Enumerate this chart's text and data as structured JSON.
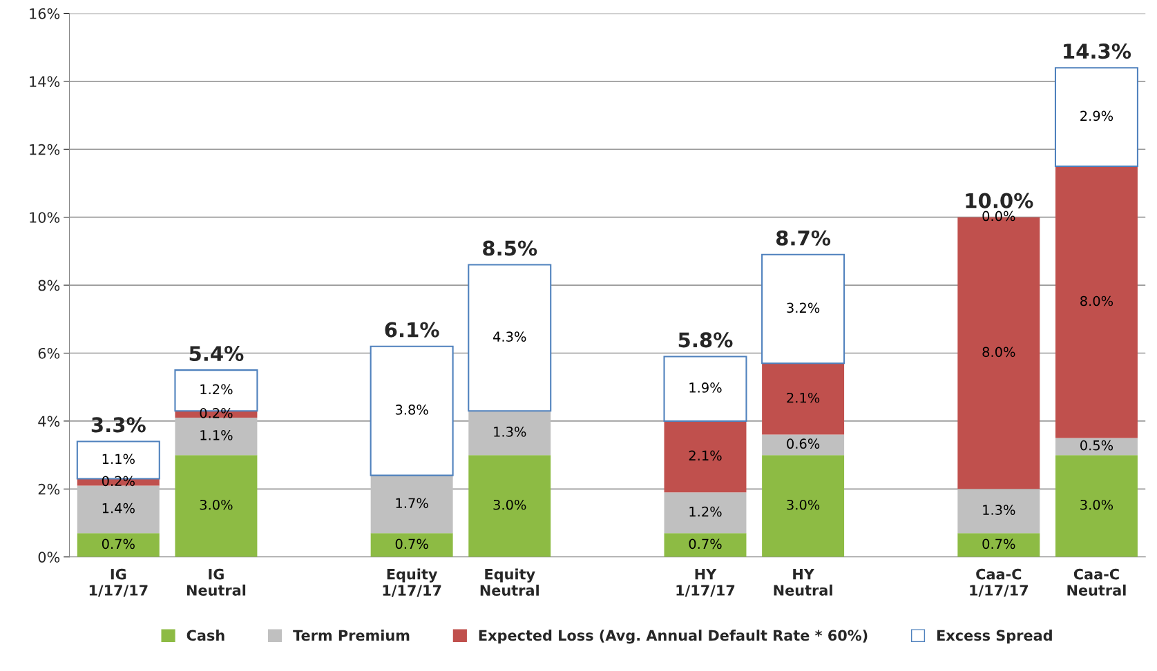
{
  "chart_data": {
    "type": "bar",
    "stacked": true,
    "categories": [
      "IG\n1/17/17",
      "IG\nNeutral",
      null,
      "Equity\n1/17/17",
      "Equity\nNeutral",
      null,
      "HY\n1/17/17",
      "HY\nNeutral",
      null,
      "Caa-C\n1/17/17",
      "Caa-C\nNeutral"
    ],
    "series": [
      {
        "name": "Cash",
        "color": "#8dbb44",
        "values": [
          0.7,
          3.0,
          null,
          0.7,
          3.0,
          null,
          0.7,
          3.0,
          null,
          0.7,
          3.0
        ],
        "value_labels": [
          "0.7%",
          "3.0%",
          null,
          "0.7%",
          "3.0%",
          null,
          "0.7%",
          "3.0%",
          null,
          "0.7%",
          "3.0%"
        ]
      },
      {
        "name": "Term Premium",
        "color": "#c0c0c0",
        "values": [
          1.4,
          1.1,
          null,
          1.7,
          1.3,
          null,
          1.2,
          0.6,
          null,
          1.3,
          0.5
        ],
        "value_labels": [
          "1.4%",
          "1.1%",
          null,
          "1.7%",
          "1.3%",
          null,
          "1.2%",
          "0.6%",
          null,
          "1.3%",
          "0.5%"
        ]
      },
      {
        "name": "Expected Loss (Avg. Annual Default Rate * 60%)",
        "color": "#c0504d",
        "values": [
          0.2,
          0.2,
          null,
          null,
          null,
          null,
          2.1,
          2.1,
          null,
          8.0,
          8.0
        ],
        "value_labels": [
          "0.2%",
          "0.2%",
          null,
          null,
          null,
          null,
          "2.1%",
          "2.1%",
          null,
          "8.0%",
          "8.0%"
        ]
      },
      {
        "name": "Excess Spread",
        "color": "#ffffff",
        "values": [
          1.1,
          1.2,
          null,
          3.8,
          4.3,
          null,
          1.9,
          3.2,
          null,
          0.0,
          2.9
        ],
        "value_labels": [
          "1.1%",
          "1.2%",
          null,
          "3.8%",
          "4.3%",
          null,
          "1.9%",
          "3.2%",
          null,
          "0.0%",
          "2.9%"
        ]
      }
    ],
    "totals": [
      "3.3%",
      "5.4%",
      null,
      "6.1%",
      "8.5%",
      null,
      "5.8%",
      "8.7%",
      null,
      "10.0%",
      "14.3%"
    ],
    "ylim": [
      0,
      16
    ],
    "yticks": [
      {
        "value": 0,
        "label": "0%"
      },
      {
        "value": 2,
        "label": "2%"
      },
      {
        "value": 4,
        "label": "4%"
      },
      {
        "value": 6,
        "label": "6%"
      },
      {
        "value": 8,
        "label": "8%"
      },
      {
        "value": 10,
        "label": "10%"
      },
      {
        "value": 12,
        "label": "12%"
      },
      {
        "value": 14,
        "label": "14%"
      },
      {
        "value": 16,
        "label": "16%"
      }
    ],
    "grid": "y",
    "legend": "bottom"
  }
}
